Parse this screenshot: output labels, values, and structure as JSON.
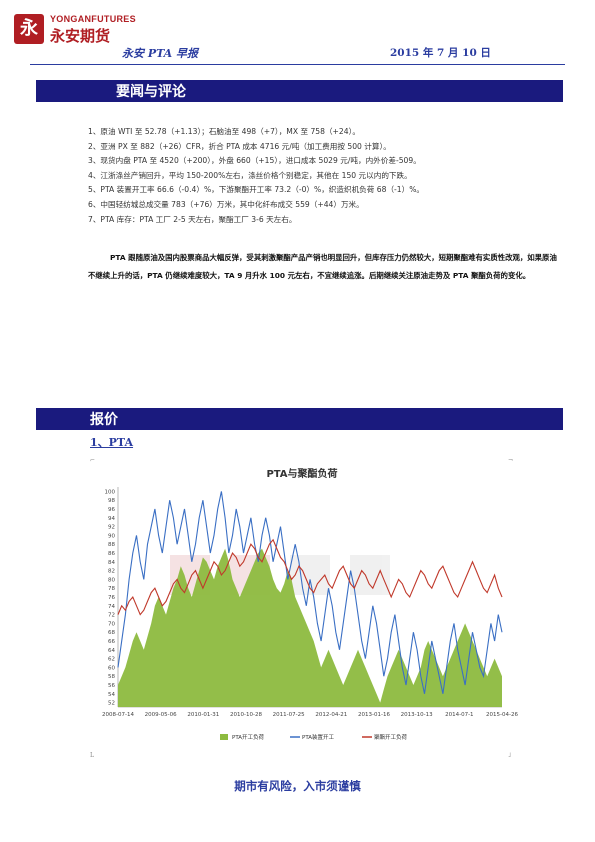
{
  "header": {
    "logo_mark": "永",
    "logo_en": "YONGANFUTURES",
    "logo_cn": "永安期货",
    "report_title": "永安 PTA 早报",
    "date": "2015 年 7 月 10 日"
  },
  "section1": {
    "title": "要闻与评论"
  },
  "news": [
    "1、原油 WTI 至 52.78（+1.13）；石脑油至 498（+7），MX 至 758（+24）。",
    "2、亚洲 PX 至 882（+26）CFR，折合 PTA 成本 4716 元/吨（加工费用按 500 计算）。",
    "3、现货内盘 PTA 至 4520（+200），外盘 660（+15），进口成本 5029 元/吨，内外价差-509。",
    "4、江浙涤丝产销回升，平均 150-200%左右，涤丝价格个别稳定，其他在 150 元以内的下跌。",
    "5、PTA 装置开工率 66.6（-0.4）%，下游聚酯开工率 73.2（-0）%，织造织机负荷 68（-1）%。",
    "6、中国轻纺城总成交量 783（+76）万米，其中化纤布成交 559（+44）万米。",
    "7、PTA 库存：PTA 工厂 2-5 天左右，聚酯工厂 3-6 天左右。"
  ],
  "comment": "PTA 跟随原油及国内股票商品大幅反弹，受其刺激聚酯产品产销也明显回升，但库存压力仍然较大，短期聚酯难有实质性改观，如果原油不继续上升的话，PTA 仍继续难度较大，TA 9 月升水 100 元左右，不宜继续追涨。后期继续关注原油走势及 PTA 聚酯负荷的变化。",
  "section2": {
    "title": "报价"
  },
  "subsection": "1、PTA",
  "chart_data": {
    "type": "line",
    "title": "PTA与聚酯负荷",
    "x_ticks": [
      "2008-07-14",
      "2009-05-06",
      "2010-01-31",
      "2010-10-28",
      "2011-07-25",
      "2012-04-21",
      "2013-01-16",
      "2013-10-13",
      "2014-07-1",
      "2015-04-26"
    ],
    "y_ticks": [
      52,
      54,
      56,
      58,
      60,
      62,
      64,
      66,
      68,
      70,
      72,
      74,
      76,
      78,
      80,
      82,
      84,
      86,
      88,
      90,
      92,
      94,
      96,
      98,
      100
    ],
    "ylim": [
      51,
      101
    ],
    "series": [
      {
        "name": "PTA开工负荷",
        "kind": "area",
        "color": "#8dbb3f",
        "values": [
          56,
          58,
          60,
          63,
          66,
          68,
          66,
          64,
          67,
          70,
          74,
          76,
          74,
          72,
          75,
          78,
          80,
          83,
          81,
          78,
          76,
          79,
          82,
          85,
          84,
          82,
          80,
          83,
          85,
          87,
          84,
          80,
          78,
          76,
          78,
          80,
          82,
          84,
          86,
          87,
          85,
          83,
          80,
          78,
          77,
          79,
          82,
          80,
          76,
          74,
          72,
          70,
          68,
          66,
          63,
          60,
          62,
          64,
          62,
          60,
          58,
          56,
          58,
          60,
          62,
          64,
          62,
          60,
          58,
          56,
          54,
          52,
          55,
          58,
          60,
          62,
          64,
          62,
          60,
          58,
          56,
          58,
          60,
          64,
          66,
          64,
          62,
          60,
          58,
          60,
          62,
          64,
          66,
          68,
          70,
          68,
          66,
          64,
          62,
          60,
          58,
          60,
          62,
          60,
          58
        ]
      },
      {
        "name": "PTA装置开工",
        "kind": "line",
        "color": "#3a6fc4",
        "values": [
          60,
          66,
          72,
          80,
          86,
          90,
          84,
          80,
          88,
          92,
          96,
          90,
          86,
          92,
          98,
          94,
          88,
          92,
          96,
          90,
          84,
          88,
          94,
          98,
          92,
          86,
          90,
          96,
          100,
          94,
          86,
          90,
          96,
          92,
          86,
          90,
          94,
          88,
          84,
          90,
          94,
          90,
          84,
          88,
          92,
          86,
          80,
          84,
          88,
          84,
          78,
          74,
          80,
          76,
          70,
          66,
          72,
          78,
          74,
          68,
          64,
          70,
          76,
          82,
          78,
          72,
          66,
          62,
          68,
          74,
          70,
          64,
          58,
          62,
          68,
          72,
          66,
          60,
          56,
          62,
          68,
          64,
          58,
          54,
          60,
          66,
          62,
          58,
          54,
          60,
          66,
          70,
          64,
          60,
          56,
          62,
          68,
          64,
          60,
          58,
          64,
          70,
          66,
          72,
          68
        ]
      },
      {
        "name": "聚酯开工负荷",
        "kind": "line",
        "color": "#c0392b",
        "values": [
          72,
          74,
          73,
          75,
          76,
          74,
          72,
          73,
          75,
          77,
          78,
          76,
          74,
          75,
          77,
          79,
          80,
          78,
          77,
          79,
          81,
          82,
          80,
          78,
          80,
          82,
          84,
          83,
          81,
          82,
          84,
          86,
          85,
          83,
          84,
          86,
          88,
          87,
          85,
          84,
          86,
          88,
          89,
          87,
          85,
          84,
          82,
          80,
          81,
          83,
          82,
          80,
          78,
          77,
          79,
          80,
          81,
          79,
          78,
          80,
          82,
          83,
          81,
          79,
          78,
          80,
          82,
          81,
          79,
          78,
          80,
          82,
          80,
          78,
          76,
          78,
          80,
          79,
          77,
          76,
          78,
          80,
          82,
          81,
          79,
          78,
          80,
          82,
          83,
          81,
          79,
          77,
          76,
          78,
          80,
          82,
          84,
          82,
          80,
          78,
          77,
          79,
          81,
          78,
          76
        ]
      }
    ],
    "legend": [
      "PTA开工负荷",
      "PTA装置开工",
      "聚酯开工负荷"
    ]
  },
  "footer": "期市有风险，入市须谨慎"
}
